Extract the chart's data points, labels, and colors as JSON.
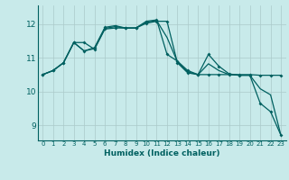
{
  "background_color": "#c8eaea",
  "grid_color": "#aacaca",
  "line_color": "#006060",
  "xlabel": "Humidex (Indice chaleur)",
  "xlim": [
    -0.5,
    23.5
  ],
  "ylim": [
    8.55,
    12.55
  ],
  "yticks": [
    9,
    10,
    11,
    12
  ],
  "xticks": [
    0,
    1,
    2,
    3,
    4,
    5,
    6,
    7,
    8,
    9,
    10,
    11,
    12,
    13,
    14,
    15,
    16,
    17,
    18,
    19,
    20,
    21,
    22,
    23
  ],
  "series1_x": [
    0,
    1,
    2,
    3,
    4,
    5,
    6,
    7,
    8,
    9,
    10,
    11,
    12,
    13,
    14,
    15,
    16,
    17,
    18,
    19,
    20,
    21,
    22,
    23
  ],
  "series1_y": [
    10.5,
    10.62,
    10.85,
    11.45,
    11.45,
    11.25,
    11.85,
    11.88,
    11.88,
    11.88,
    12.02,
    12.08,
    12.08,
    10.85,
    10.55,
    10.5,
    10.5,
    10.5,
    10.5,
    10.5,
    10.5,
    10.48,
    10.48,
    10.48
  ],
  "series2_x": [
    0,
    1,
    2,
    3,
    4,
    5,
    6,
    7,
    8,
    9,
    10,
    11,
    12,
    13,
    14,
    15,
    16,
    17,
    18,
    19,
    20,
    21,
    22,
    23
  ],
  "series2_y": [
    10.5,
    10.62,
    10.85,
    11.45,
    11.2,
    11.3,
    11.9,
    11.95,
    11.88,
    11.88,
    12.08,
    12.12,
    11.1,
    10.9,
    10.62,
    10.5,
    11.1,
    10.75,
    10.52,
    10.48,
    10.48,
    9.65,
    9.4,
    8.7
  ],
  "series3_x": [
    0,
    1,
    2,
    3,
    4,
    5,
    6,
    7,
    8,
    9,
    10,
    11,
    12,
    13,
    14,
    15,
    16,
    17,
    18,
    19,
    20,
    21,
    22,
    23
  ],
  "series3_y": [
    10.5,
    10.62,
    10.85,
    11.45,
    11.2,
    11.27,
    11.87,
    11.92,
    11.88,
    11.88,
    12.05,
    12.1,
    11.6,
    10.88,
    10.58,
    10.5,
    10.82,
    10.62,
    10.5,
    10.48,
    10.48,
    10.08,
    9.9,
    8.7
  ]
}
